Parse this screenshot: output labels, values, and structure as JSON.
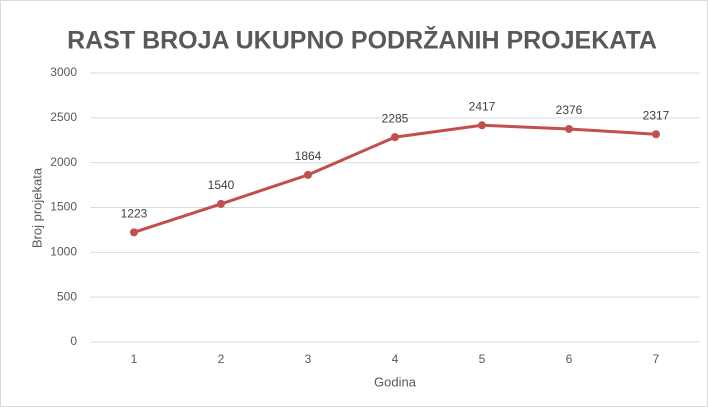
{
  "chart_data": {
    "type": "line",
    "title": "RAST BROJA UKUPNO PODRŽANIH PROJEKATA",
    "x_label": "Godina",
    "y_label": "Broj projekata",
    "categories": [
      "1",
      "2",
      "3",
      "4",
      "5",
      "6",
      "7"
    ],
    "values": [
      1223,
      1540,
      1864,
      2285,
      2417,
      2376,
      2317
    ],
    "color": "#c0504d",
    "ylim": [
      0,
      3000
    ],
    "yticks": [
      0,
      500,
      1000,
      1500,
      2000,
      2500,
      3000
    ],
    "grid": true
  }
}
